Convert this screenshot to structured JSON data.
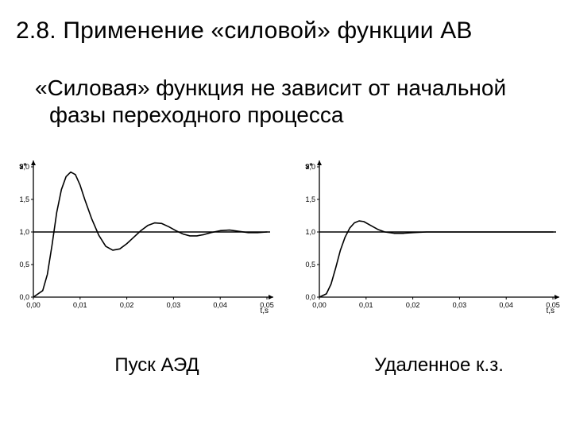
{
  "title": "2.8. Применение «силовой» функции АВ",
  "subtitle": "«Силовая» функция не зависит от начальной фазы переходного процесса",
  "caption_left": "Пуск АЭД",
  "caption_right": "Удаленное к.з.",
  "chart_common": {
    "type": "line",
    "xlim": [
      0.0,
      0.05
    ],
    "ylim": [
      0.0,
      2.0
    ],
    "xticks": [
      0.0,
      0.01,
      0.02,
      0.03,
      0.04,
      0.05
    ],
    "xtick_labels": [
      "0,00",
      "0,01",
      "0,02",
      "0,03",
      "0,04",
      "0,05"
    ],
    "yticks": [
      0.0,
      0.5,
      1.0,
      1.5,
      2.0
    ],
    "ytick_labels": [
      "0,0",
      "0,5",
      "1,0",
      "1,5",
      "2,0"
    ],
    "ylabel": "s*",
    "xlabel": "t,s",
    "line_color": "#000000",
    "line_width": 1.6,
    "axis_color": "#000000",
    "background_color": "#ffffff",
    "ref_line_y": 1.0
  },
  "chart_left": {
    "series": [
      [
        0.0,
        0.0
      ],
      [
        0.002,
        0.1
      ],
      [
        0.003,
        0.35
      ],
      [
        0.004,
        0.8
      ],
      [
        0.005,
        1.3
      ],
      [
        0.006,
        1.65
      ],
      [
        0.007,
        1.85
      ],
      [
        0.008,
        1.92
      ],
      [
        0.009,
        1.88
      ],
      [
        0.01,
        1.72
      ],
      [
        0.011,
        1.5
      ],
      [
        0.0125,
        1.2
      ],
      [
        0.014,
        0.95
      ],
      [
        0.0155,
        0.78
      ],
      [
        0.017,
        0.72
      ],
      [
        0.0185,
        0.74
      ],
      [
        0.02,
        0.82
      ],
      [
        0.0215,
        0.92
      ],
      [
        0.023,
        1.02
      ],
      [
        0.0245,
        1.1
      ],
      [
        0.026,
        1.14
      ],
      [
        0.0275,
        1.13
      ],
      [
        0.029,
        1.08
      ],
      [
        0.0305,
        1.02
      ],
      [
        0.032,
        0.97
      ],
      [
        0.0335,
        0.94
      ],
      [
        0.035,
        0.94
      ],
      [
        0.0365,
        0.96
      ],
      [
        0.038,
        0.99
      ],
      [
        0.04,
        1.02
      ],
      [
        0.042,
        1.03
      ],
      [
        0.044,
        1.01
      ],
      [
        0.046,
        0.99
      ],
      [
        0.048,
        0.99
      ],
      [
        0.05,
        1.0
      ]
    ]
  },
  "chart_right": {
    "series": [
      [
        0.0,
        0.0
      ],
      [
        0.0015,
        0.05
      ],
      [
        0.0025,
        0.2
      ],
      [
        0.0035,
        0.45
      ],
      [
        0.0045,
        0.72
      ],
      [
        0.0055,
        0.92
      ],
      [
        0.0065,
        1.06
      ],
      [
        0.0075,
        1.14
      ],
      [
        0.0085,
        1.17
      ],
      [
        0.0095,
        1.16
      ],
      [
        0.011,
        1.1
      ],
      [
        0.0125,
        1.04
      ],
      [
        0.014,
        1.0
      ],
      [
        0.016,
        0.98
      ],
      [
        0.018,
        0.98
      ],
      [
        0.02,
        0.99
      ],
      [
        0.023,
        1.0
      ],
      [
        0.027,
        1.0
      ],
      [
        0.032,
        1.0
      ],
      [
        0.038,
        1.0
      ],
      [
        0.044,
        1.0
      ],
      [
        0.05,
        1.0
      ]
    ]
  }
}
